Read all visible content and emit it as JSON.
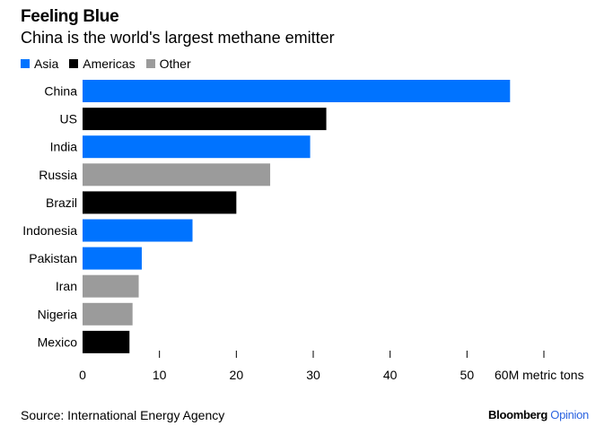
{
  "chart_data": {
    "type": "bar",
    "orientation": "horizontal",
    "title": "Feeling Blue",
    "subtitle": "China is the world's largest methane emitter",
    "categories": [
      "China",
      "US",
      "India",
      "Russia",
      "Brazil",
      "Indonesia",
      "Pakistan",
      "Iran",
      "Nigeria",
      "Mexico"
    ],
    "values": [
      55.6,
      31.7,
      29.6,
      24.4,
      20.0,
      14.3,
      7.7,
      7.3,
      6.5,
      6.1
    ],
    "groups": [
      "Asia",
      "Americas",
      "Asia",
      "Other",
      "Americas",
      "Asia",
      "Asia",
      "Other",
      "Other",
      "Americas"
    ],
    "legend": [
      {
        "name": "Asia",
        "color": "#0073ff"
      },
      {
        "name": "Americas",
        "color": "#000000"
      },
      {
        "name": "Other",
        "color": "#9b9b9b"
      }
    ],
    "legend_position": "top-left",
    "xlim": [
      0,
      60
    ],
    "x_ticks": [
      "0",
      "10",
      "20",
      "30",
      "40",
      "50",
      "60M metric tons"
    ],
    "x_tick_values": [
      0,
      10,
      20,
      30,
      40,
      50,
      60
    ],
    "grid": false
  },
  "footer": {
    "source": "Source: International Energy Agency",
    "brand": "Bloomberg",
    "brand_suffix": "Opinion"
  }
}
